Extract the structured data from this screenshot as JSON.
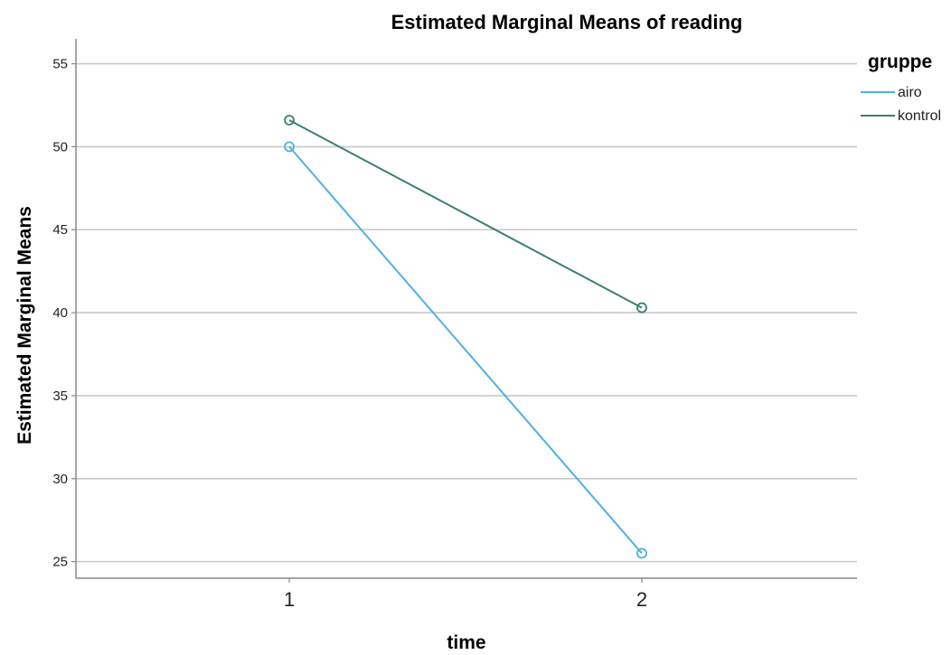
{
  "chart_data": {
    "type": "line",
    "title": "Estimated Marginal Means of reading",
    "xlabel": "time",
    "ylabel": "Estimated Marginal Means",
    "categories": [
      "1",
      "2"
    ],
    "ylim": [
      24,
      56.5
    ],
    "yticks": [
      25,
      30,
      35,
      40,
      45,
      50,
      55
    ],
    "grid": true,
    "legend_position": "top-right",
    "legend_title": "gruppe",
    "series": [
      {
        "name": "airo",
        "values": [
          50.0,
          25.5
        ],
        "color": "#4eb1e3"
      },
      {
        "name": "kontrol",
        "values": [
          51.6,
          40.3
        ],
        "color": "#3a7f75"
      }
    ]
  }
}
